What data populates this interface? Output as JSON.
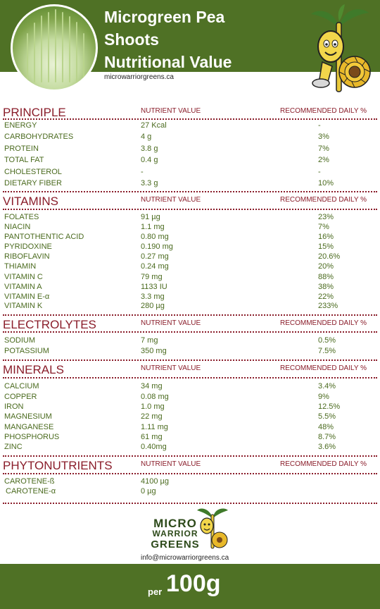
{
  "header": {
    "title_lines": [
      "Microgreen Pea",
      "Shoots",
      "Nutritional Value"
    ],
    "website": "microwarriorgreens.ca"
  },
  "columns": {
    "nutrient_value": "NUTRIENT VALUE",
    "recommended": "RECOMMENDED DAILY %"
  },
  "sections": [
    {
      "title": "PRINCIPLE",
      "rows": [
        {
          "name": "ENERGY",
          "value": "27 Kcal",
          "rd": "-"
        },
        {
          "name": "CARBOHYDRATES",
          "value": " 4 g",
          "rd": "3%"
        },
        {
          "name": "PROTEIN",
          "value": "3.8 g",
          "rd": "7%"
        },
        {
          "name": "TOTAL FAT",
          "value": "0.4 g",
          "rd": "2%"
        },
        {
          "name": "CHOLESTEROL",
          "value": "-",
          "rd": "-"
        },
        {
          "name": "DIETARY FIBER",
          "value": "3.3 g",
          "rd": "10%"
        }
      ]
    },
    {
      "title": "VITAMINS",
      "rows": [
        {
          "name": "FOLATES",
          "value": "91 µg",
          "rd": "23%"
        },
        {
          "name": "NIACIN",
          "value": "1.1 mg",
          "rd": "7%"
        },
        {
          "name": "PANTOTHENTIC ACID",
          "value": "0.80 mg",
          "rd": "16%"
        },
        {
          "name": "PYRIDOXINE",
          "value": "0.190 mg",
          "rd": "15%"
        },
        {
          "name": "RIBOFLAVIN",
          "value": "0.27 mg",
          "rd": "20.6%"
        },
        {
          "name": "THIAMIN",
          "value": "0.24 mg",
          "rd": "20%"
        },
        {
          "name": "VITAMIN C",
          "value": "79 mg",
          "rd": "88%"
        },
        {
          "name": "VITAMIN A",
          "value": "1133 IU",
          "rd": "38%"
        },
        {
          "name": "VITAMIN E-α",
          "value": "3.3 mg",
          "rd": "22%"
        },
        {
          "name": "VITAMIN K",
          "value": "280 µg",
          "rd": "233%"
        }
      ]
    },
    {
      "title": "ELECTROLYTES",
      "rows": [
        {
          "name": "SODIUM",
          "value": "7 mg",
          "rd": "0.5%"
        },
        {
          "name": "POTASSIUM",
          "value": "350 mg",
          "rd": "7.5%"
        }
      ]
    },
    {
      "title": "MINERALS",
      "rows": [
        {
          "name": "CALCIUM",
          "value": "34 mg",
          "rd": "3.4%"
        },
        {
          "name": "COPPER",
          "value": "0.08 mg",
          "rd": "9%"
        },
        {
          "name": "IRON",
          "value": "1.0 mg",
          "rd": "12.5%"
        },
        {
          "name": "MAGNESIUM",
          "value": "22 mg",
          "rd": "5.5%"
        },
        {
          "name": "MANGANESE",
          "value": "1.11 mg",
          "rd": "48%"
        },
        {
          "name": "PHOSPHORUS",
          "value": "61 mg",
          "rd": "8.7%"
        },
        {
          "name": "ZINC",
          "value": "0.40mg",
          "rd": "3.6%"
        }
      ]
    },
    {
      "title": "PHYTONUTRIENTS",
      "rows": [
        {
          "name": "CAROTENE-ß",
          "value": "4100 µg",
          "rd": ""
        },
        {
          "name": "CAROTENE-α",
          "value": "0 µg",
          "rd": ""
        }
      ]
    }
  ],
  "logo": {
    "line1": "MICRO",
    "line2": "WARRIOR",
    "line3": "GREENS",
    "email": "info@microwarriorgreens.ca"
  },
  "footer": {
    "per": "per",
    "amount": "100g"
  },
  "colors": {
    "brand_green": "#4f7125",
    "section_red": "#8a1d2a",
    "row_green": "#4a6a1e"
  }
}
